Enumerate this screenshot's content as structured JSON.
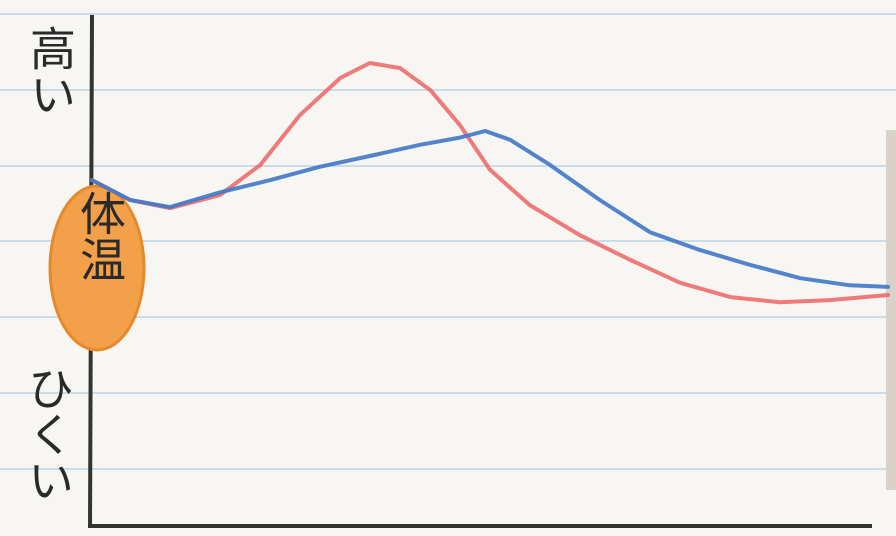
{
  "chart_data": {
    "type": "line",
    "y_axis_label_high": "高い",
    "y_axis_label_low": "ひくい",
    "annotation": "体温",
    "xlim": [
      0,
      100
    ],
    "ylim": [
      0,
      100
    ],
    "series": [
      {
        "color": "#ee6b6b",
        "x": [
          0,
          4.8,
          9.8,
          16.1,
          21.1,
          26.1,
          31.2,
          34.9,
          38.7,
          42.5,
          46.2,
          50.0,
          55.0,
          61.3,
          67.6,
          73.9,
          80.2,
          86.4,
          92.7,
          100
        ],
        "values": [
          67.7,
          63.8,
          62.2,
          64.8,
          70.6,
          80.4,
          87.7,
          90.6,
          89.6,
          85.3,
          78.5,
          69.7,
          62.8,
          56.9,
          52.1,
          47.6,
          44.8,
          43.8,
          44.2,
          45.2
        ]
      },
      {
        "color": "#3f78c8",
        "x": [
          0,
          4.8,
          9.8,
          16.1,
          22.4,
          28.6,
          34.9,
          41.2,
          46.2,
          49.4,
          52.5,
          57.5,
          63.8,
          70.1,
          76.4,
          82.7,
          89.0,
          95.2,
          100
        ],
        "values": [
          67.7,
          63.8,
          62.4,
          65.3,
          67.7,
          70.3,
          72.4,
          74.6,
          76.0,
          77.3,
          75.6,
          70.7,
          63.8,
          57.5,
          54.0,
          51.1,
          48.5,
          47.1,
          46.8
        ]
      }
    ]
  }
}
